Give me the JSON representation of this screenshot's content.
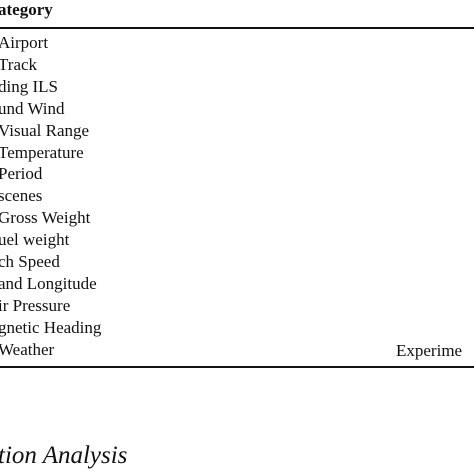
{
  "table": {
    "header": "ategory",
    "rows": [
      "Airport",
      "Track",
      "ding ILS",
      "und Wind",
      "Visual Range",
      "Temperature",
      "Period",
      "scenes",
      "Gross Weight",
      "uel weight",
      "ch Speed",
      "and Longitude",
      "ir Pressure",
      "gnetic Heading",
      "Weather"
    ],
    "note": "Experime"
  },
  "caption": "tion Analysis"
}
